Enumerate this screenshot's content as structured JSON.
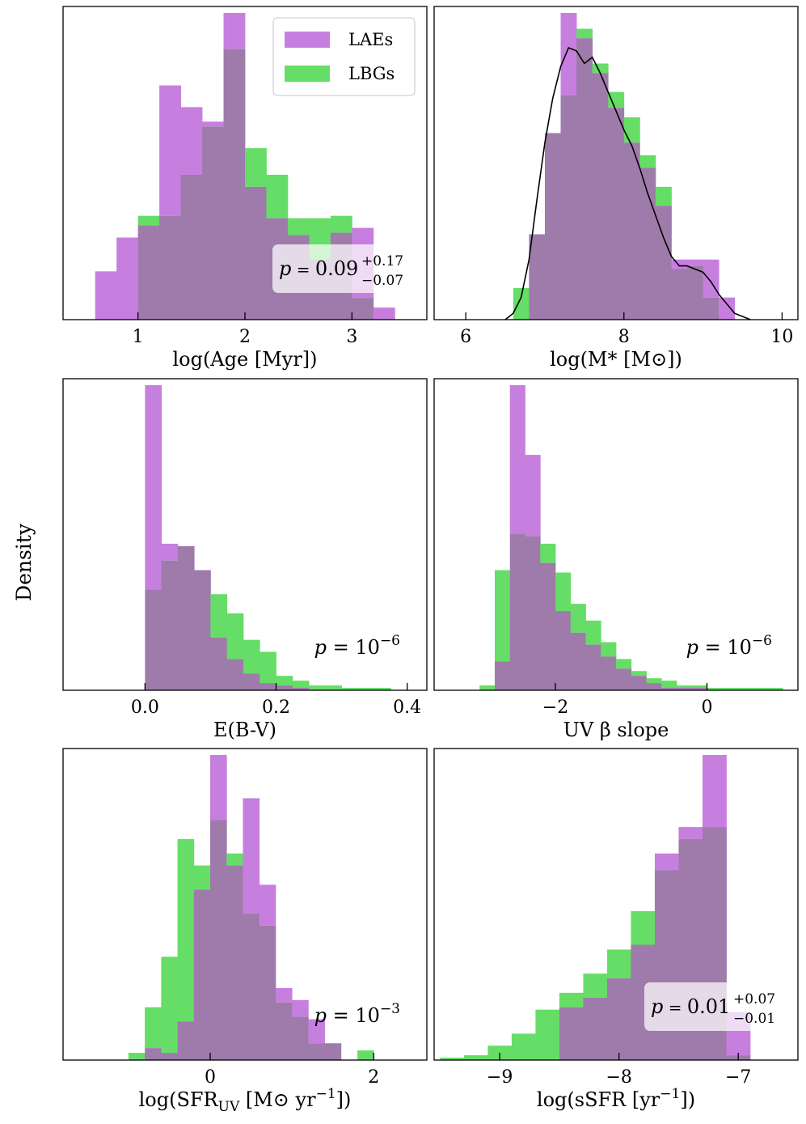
{
  "figure": {
    "ylabel": "Density",
    "colors": {
      "lae": "#c77fdf",
      "lbg": "#66dd66",
      "overlap": "#9e7bab",
      "kde": "#000000"
    }
  },
  "legend": {
    "items": [
      {
        "label": "LAEs",
        "key": "lae"
      },
      {
        "label": "LBGs",
        "key": "lbg"
      }
    ]
  },
  "chart_data": [
    {
      "id": "age",
      "type": "bar",
      "xlabel": "log(Age [Myr])",
      "xlim": [
        0.3,
        3.7
      ],
      "ylim": [
        0,
        1.27
      ],
      "xticks": [
        {
          "value": 1,
          "label": "1"
        },
        {
          "value": 2,
          "label": "2"
        },
        {
          "value": 3,
          "label": "3"
        }
      ],
      "bin_edges": [
        0.6,
        0.8,
        1.0,
        1.2,
        1.4,
        1.6,
        1.8,
        2.0,
        2.2,
        2.4,
        2.6,
        2.8,
        3.0,
        3.2,
        3.4
      ],
      "series": [
        {
          "name": "LAEs",
          "values": [
            0.2,
            0.34,
            0.39,
            0.97,
            0.88,
            0.82,
            1.27,
            0.55,
            0.42,
            0.35,
            0.25,
            0.36,
            0.38,
            0.05
          ]
        },
        {
          "name": "LBGs",
          "values": [
            0.0,
            0.0,
            0.43,
            0.43,
            0.6,
            0.8,
            1.12,
            0.71,
            0.6,
            0.42,
            0.42,
            0.43,
            0.09,
            0.0
          ]
        }
      ],
      "annotation": {
        "base": "0.09",
        "sup": "+0.17",
        "sub": "−0.07",
        "boxed": true
      },
      "legend": true
    },
    {
      "id": "mass",
      "type": "bar",
      "xlabel": "log(M* [M⊙])",
      "xlim": [
        5.6,
        10.2
      ],
      "ylim": [
        0,
        0.97
      ],
      "xticks": [
        {
          "value": 6,
          "label": "6"
        },
        {
          "value": 8,
          "label": "8"
        },
        {
          "value": 10,
          "label": "10"
        }
      ],
      "bin_edges": [
        6.6,
        6.8,
        7.0,
        7.2,
        7.4,
        7.6,
        7.8,
        8.0,
        8.2,
        8.4,
        8.6,
        8.8,
        9.0,
        9.2,
        9.4
      ],
      "series": [
        {
          "name": "LAEs",
          "values": [
            0.0,
            0.27,
            0.59,
            0.97,
            0.89,
            0.78,
            0.67,
            0.56,
            0.48,
            0.36,
            0.19,
            0.19,
            0.19,
            0.07
          ]
        },
        {
          "name": "LBGs",
          "values": [
            0.1,
            0.27,
            0.59,
            0.71,
            0.92,
            0.81,
            0.72,
            0.64,
            0.52,
            0.42,
            0.16,
            0.17,
            0.07,
            0.0
          ]
        }
      ],
      "kde": {
        "x": [
          6.5,
          6.6,
          6.7,
          6.8,
          6.9,
          7.0,
          7.1,
          7.2,
          7.3,
          7.4,
          7.5,
          7.6,
          7.7,
          7.8,
          7.9,
          8.0,
          8.1,
          8.2,
          8.3,
          8.4,
          8.5,
          8.6,
          8.7,
          8.8,
          8.9,
          9.0,
          9.1,
          9.2,
          9.3,
          9.4,
          9.5,
          9.6
        ],
        "y": [
          0.0,
          0.02,
          0.07,
          0.19,
          0.38,
          0.56,
          0.7,
          0.8,
          0.86,
          0.85,
          0.81,
          0.83,
          0.78,
          0.72,
          0.66,
          0.6,
          0.55,
          0.48,
          0.4,
          0.33,
          0.26,
          0.2,
          0.17,
          0.17,
          0.16,
          0.15,
          0.12,
          0.08,
          0.05,
          0.02,
          0.01,
          0.0
        ]
      }
    },
    {
      "id": "ebv",
      "type": "bar",
      "xlabel": "E(B-V)",
      "xlim": [
        -0.125,
        0.43
      ],
      "ylim": [
        0,
        1.27
      ],
      "xticks": [
        {
          "value": 0.0,
          "label": "0.0"
        },
        {
          "value": 0.2,
          "label": "0.2"
        },
        {
          "value": 0.4,
          "label": "0.4"
        }
      ],
      "bin_edges": [
        0.0,
        0.025,
        0.05,
        0.075,
        0.1,
        0.125,
        0.15,
        0.175,
        0.2,
        0.225,
        0.25,
        0.275,
        0.3,
        0.325,
        0.35,
        0.375
      ],
      "series": [
        {
          "name": "LAEs",
          "values": [
            1.27,
            0.61,
            0.6,
            0.5,
            0.22,
            0.13,
            0.07,
            0.03,
            0.02,
            0.01,
            0.0,
            0.0,
            0.0,
            0.0,
            0.0
          ]
        },
        {
          "name": "LBGs",
          "values": [
            0.42,
            0.54,
            0.6,
            0.5,
            0.4,
            0.32,
            0.21,
            0.16,
            0.06,
            0.04,
            0.02,
            0.02,
            0.01,
            0.01,
            0.01
          ]
        }
      ],
      "annotation": {
        "exp": "−6"
      }
    },
    {
      "id": "beta",
      "type": "bar",
      "xlabel": "UV β slope",
      "xlim": [
        -3.6,
        1.2
      ],
      "ylim": [
        0,
        1.27
      ],
      "xticks": [
        {
          "value": -2,
          "label": "−2"
        },
        {
          "value": 0,
          "label": "0"
        }
      ],
      "bin_edges": [
        -3.0,
        -2.8,
        -2.6,
        -2.4,
        -2.2,
        -2.0,
        -1.8,
        -1.6,
        -1.4,
        -1.2,
        -1.0,
        -0.8,
        -0.6,
        -0.4,
        -0.2,
        0.0,
        0.2,
        0.4,
        0.6,
        0.8,
        1.0
      ],
      "series": [
        {
          "name": "LAEs",
          "values": [
            0.0,
            0.12,
            1.27,
            0.98,
            0.53,
            0.33,
            0.24,
            0.19,
            0.14,
            0.09,
            0.06,
            0.03,
            0.01,
            0.01,
            0.01,
            0.0,
            0.0,
            0.0,
            0.0,
            0.0
          ]
        },
        {
          "name": "LBGs",
          "values": [
            0.02,
            0.5,
            0.65,
            0.64,
            0.61,
            0.49,
            0.36,
            0.29,
            0.2,
            0.13,
            0.08,
            0.05,
            0.04,
            0.02,
            0.02,
            0.01,
            0.01,
            0.01,
            0.01,
            0.01
          ]
        }
      ],
      "annotation": {
        "exp": "−6"
      }
    },
    {
      "id": "sfr",
      "type": "bar",
      "xlabel": "log(SFR_UV [M⊙ yr^−1])",
      "xlim": [
        -1.8,
        2.65
      ],
      "ylim": [
        0,
        1.27
      ],
      "xticks": [
        {
          "value": 0,
          "label": "0"
        },
        {
          "value": 2,
          "label": "2"
        }
      ],
      "bin_edges": [
        -1.0,
        -0.8,
        -0.6,
        -0.4,
        -0.2,
        0.0,
        0.2,
        0.4,
        0.6,
        0.8,
        1.0,
        1.2,
        1.4,
        1.6,
        1.8,
        2.0
      ],
      "series": [
        {
          "name": "LAEs",
          "values": [
            0.0,
            0.05,
            0.03,
            0.16,
            0.71,
            1.27,
            0.81,
            1.09,
            0.73,
            0.3,
            0.25,
            0.17,
            0.07,
            0.0,
            0.0
          ]
        },
        {
          "name": "LBGs",
          "values": [
            0.03,
            0.22,
            0.43,
            0.92,
            0.81,
            1.0,
            0.86,
            0.61,
            0.56,
            0.24,
            0.18,
            0.07,
            0.07,
            0.0,
            0.04
          ]
        }
      ],
      "annotation": {
        "exp": "−3"
      }
    },
    {
      "id": "ssfr",
      "type": "bar",
      "xlabel": "log(sSFR [yr^−1])",
      "xlim": [
        -9.55,
        -6.5
      ],
      "ylim": [
        0,
        1.27
      ],
      "xticks": [
        {
          "value": -9,
          "label": "−9"
        },
        {
          "value": -8,
          "label": "−8"
        },
        {
          "value": -7,
          "label": "−7"
        }
      ],
      "bin_edges": [
        -9.5,
        -9.3,
        -9.1,
        -8.9,
        -8.7,
        -8.5,
        -8.3,
        -8.1,
        -7.9,
        -7.7,
        -7.5,
        -7.3,
        -7.1,
        -6.9
      ],
      "series": [
        {
          "name": "LAEs",
          "values": [
            0.0,
            0.0,
            0.0,
            0.0,
            0.0,
            0.22,
            0.26,
            0.34,
            0.48,
            0.86,
            0.97,
            1.27,
            0.2
          ]
        },
        {
          "name": "LBGs",
          "values": [
            0.01,
            0.02,
            0.06,
            0.11,
            0.21,
            0.28,
            0.36,
            0.46,
            0.62,
            0.79,
            0.92,
            0.97,
            0.02
          ]
        }
      ],
      "annotation": {
        "base": "0.01",
        "sup": "+0.07",
        "sub": "−0.01",
        "boxed": true
      }
    }
  ]
}
